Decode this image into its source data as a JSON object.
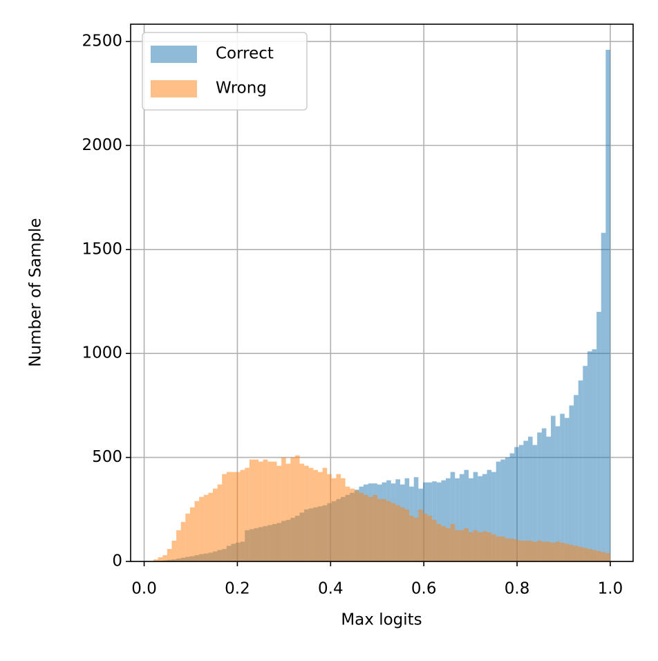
{
  "chart_data": {
    "type": "histogram",
    "xlabel": "Max logits",
    "ylabel": "Number of Sample",
    "bins": [
      0.02,
      0.0298,
      0.0396,
      0.0494,
      0.0592,
      0.069,
      0.0788,
      0.0886,
      0.0984,
      0.1082,
      0.118,
      0.1278,
      0.1376,
      0.1474,
      0.1572,
      0.167,
      0.1768,
      0.1866,
      0.1964,
      0.2062,
      0.216,
      0.2258,
      0.2356,
      0.2454,
      0.2552,
      0.265,
      0.2748,
      0.2846,
      0.2944,
      0.3042,
      0.314,
      0.3238,
      0.3336,
      0.3434,
      0.3532,
      0.363,
      0.3728,
      0.3826,
      0.3924,
      0.4022,
      0.412,
      0.4218,
      0.4316,
      0.4414,
      0.4512,
      0.461,
      0.4708,
      0.4806,
      0.4904,
      0.5002,
      0.51,
      0.5198,
      0.5296,
      0.5394,
      0.5492,
      0.559,
      0.5688,
      0.5786,
      0.5884,
      0.5982,
      0.608,
      0.6178,
      0.6276,
      0.6374,
      0.6472,
      0.657,
      0.6668,
      0.6766,
      0.6864,
      0.6962,
      0.706,
      0.7158,
      0.7256,
      0.7354,
      0.7452,
      0.755,
      0.7648,
      0.7746,
      0.7844,
      0.7942,
      0.804,
      0.8138,
      0.8236,
      0.8334,
      0.8432,
      0.853,
      0.8628,
      0.8726,
      0.8824,
      0.8922,
      0.902,
      0.9118,
      0.9216,
      0.9314,
      0.9412,
      0.951,
      0.9608,
      0.9706,
      0.9804,
      0.9902,
      1.0
    ],
    "series": [
      {
        "name": "Correct",
        "color": "#1f77b4",
        "values": [
          2,
          3,
          5,
          8,
          10,
          14,
          18,
          22,
          25,
          30,
          35,
          38,
          42,
          48,
          55,
          60,
          75,
          85,
          90,
          95,
          150,
          155,
          160,
          165,
          170,
          175,
          180,
          185,
          195,
          200,
          210,
          220,
          235,
          250,
          255,
          260,
          265,
          270,
          280,
          290,
          300,
          310,
          320,
          330,
          345,
          360,
          370,
          375,
          375,
          370,
          380,
          390,
          375,
          395,
          370,
          400,
          360,
          405,
          350,
          380,
          380,
          385,
          380,
          390,
          400,
          430,
          400,
          420,
          440,
          400,
          430,
          410,
          420,
          440,
          430,
          480,
          490,
          500,
          520,
          550,
          560,
          580,
          600,
          560,
          620,
          640,
          600,
          700,
          650,
          710,
          690,
          750,
          800,
          870,
          940,
          1010,
          1020,
          1200,
          1580,
          2460
        ]
      },
      {
        "name": "Wrong",
        "color": "#ff7f0e",
        "values": [
          10,
          20,
          30,
          60,
          100,
          150,
          190,
          230,
          260,
          290,
          310,
          320,
          330,
          350,
          370,
          420,
          430,
          430,
          430,
          440,
          450,
          490,
          490,
          480,
          490,
          480,
          480,
          460,
          500,
          470,
          500,
          510,
          470,
          460,
          450,
          440,
          430,
          450,
          420,
          400,
          420,
          400,
          360,
          350,
          340,
          330,
          320,
          310,
          320,
          300,
          300,
          290,
          280,
          270,
          260,
          250,
          220,
          210,
          250,
          230,
          220,
          200,
          180,
          170,
          160,
          180,
          150,
          150,
          160,
          140,
          150,
          140,
          145,
          140,
          130,
          120,
          120,
          110,
          110,
          105,
          100,
          100,
          100,
          95,
          100,
          95,
          95,
          90,
          95,
          90,
          85,
          80,
          75,
          70,
          65,
          60,
          55,
          50,
          45,
          40
        ]
      }
    ],
    "xlim": [
      -0.029,
      1.049
    ],
    "ylim": [
      0,
      2583
    ],
    "xticks": [
      {
        "value": 0,
        "label": "0.0"
      },
      0.2,
      0.4,
      0.6,
      0.8,
      {
        "value": 1,
        "label": "1.0"
      }
    ],
    "yticks": [
      0,
      500,
      1000,
      1500,
      2000,
      2500
    ],
    "grid": true,
    "legend": "upper left"
  }
}
